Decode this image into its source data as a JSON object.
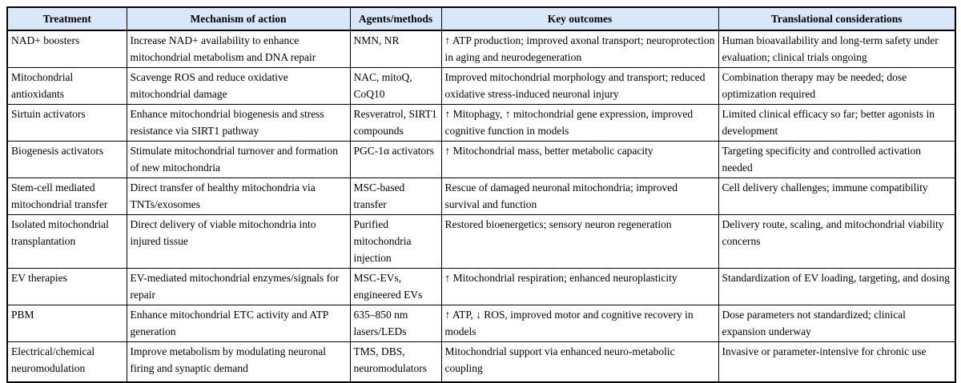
{
  "colors": {
    "header_bg": "#d9e8f8",
    "border_color": "#000000"
  },
  "table": {
    "columns": [
      "Treatment",
      "Mechanism of action",
      "Agents/methods",
      "Key outcomes",
      "Translational considerations"
    ],
    "rows": [
      {
        "treatment": "NAD+ boosters",
        "mechanism": "Increase NAD+ availability to enhance mitochondrial metabolism and DNA repair",
        "agents": "NMN, NR",
        "outcomes": "↑ ATP production; improved axonal transport; neuroprotection in aging and neurodegeneration",
        "considerations": "Human bioavailability and long-term safety under evaluation; clinical trials ongoing"
      },
      {
        "treatment": "Mitochondrial antioxidants",
        "mechanism": "Scavenge ROS and reduce oxidative mitochondrial damage",
        "agents": "NAC, mitoQ, CoQ10",
        "outcomes": "Improved mitochondrial morphology and transport; reduced oxidative stress-induced neuronal injury",
        "considerations": "Combination therapy may be needed; dose optimization required"
      },
      {
        "treatment": "Sirtuin activators",
        "mechanism": "Enhance mitochondrial biogenesis and stress resistance via SIRT1 pathway",
        "agents": "Resveratrol, SIRT1 compounds",
        "outcomes": "↑ Mitophagy, ↑ mitochondrial gene expression, improved cognitive function in models",
        "considerations": "Limited clinical efficacy so far; better agonists in development"
      },
      {
        "treatment": "Biogenesis activators",
        "mechanism": "Stimulate mitochondrial turnover and formation of new mitochondria",
        "agents": "PGC-1α activators",
        "outcomes": "↑ Mitochondrial mass, better metabolic capacity",
        "considerations": "Targeting specificity and controlled activation needed"
      },
      {
        "treatment": "Stem-cell mediated mitochondrial transfer",
        "mechanism": "Direct transfer of healthy mitochondria via TNTs/exosomes",
        "agents": "MSC-based transfer",
        "outcomes": "Rescue of damaged neuronal mitochondria; improved survival and function",
        "considerations": "Cell delivery challenges; immune compatibility"
      },
      {
        "treatment": "Isolated mitochondrial transplantation",
        "mechanism": "Direct delivery of viable mitochondria into injured tissue",
        "agents": "Purified mitochondria injection",
        "outcomes": "Restored bioenergetics; sensory neuron regeneration",
        "considerations": "Delivery route, scaling, and mitochondrial viability concerns"
      },
      {
        "treatment": "EV therapies",
        "mechanism": "EV-mediated mitochondrial enzymes/signals for repair",
        "agents": "MSC-EVs, engineered EVs",
        "outcomes": "↑ Mitochondrial respiration; enhanced neuroplasticity",
        "considerations": "Standardization of EV loading, targeting, and dosing"
      },
      {
        "treatment": "PBM",
        "mechanism": "Enhance mitochondrial ETC activity and ATP generation",
        "agents": "635–850 nm lasers/LEDs",
        "outcomes": "↑ ATP, ↓ ROS, improved motor and cognitive recovery in models",
        "considerations": "Dose parameters not standardized; clinical expansion underway"
      },
      {
        "treatment": "Electrical/chemical neuromodulation",
        "mechanism": "Improve metabolism by modulating neuronal firing and synaptic demand",
        "agents": "TMS, DBS, neuromodulators",
        "outcomes": "Mitochondrial support via enhanced neuro-metabolic coupling",
        "considerations": "Invasive or parameter-intensive for chronic use"
      }
    ]
  }
}
